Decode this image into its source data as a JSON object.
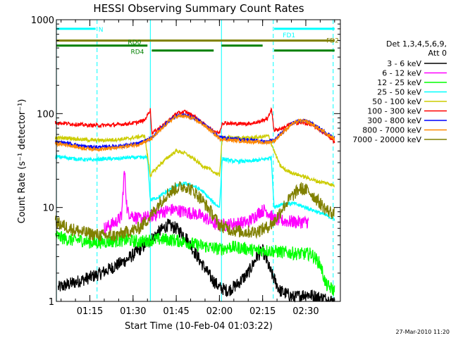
{
  "chart_data": {
    "type": "line",
    "title": "HESSI Observing Summary Count Rates",
    "ylabel": "Count Rate (s⁻¹ detector⁻¹)",
    "xlabel": "Start Time (10-Feb-04 01:03:22)",
    "timestamp": "27-Mar-2010 11:20",
    "y_scale": "log",
    "ylim": [
      1,
      1000
    ],
    "xlim": [
      "01:03:22",
      "02:42:00"
    ],
    "y_ticks": [
      {
        "value": 1,
        "label": "1"
      },
      {
        "value": 10,
        "label": "10"
      },
      {
        "value": 100,
        "label": "100"
      },
      {
        "value": 1000,
        "label": "1000"
      }
    ],
    "x_ticks": [
      {
        "minutes": 75,
        "label": "01:15"
      },
      {
        "minutes": 90,
        "label": "01:30"
      },
      {
        "minutes": 105,
        "label": "01:45"
      },
      {
        "minutes": 120,
        "label": "02:00"
      },
      {
        "minutes": 135,
        "label": "02:15"
      },
      {
        "minutes": 150,
        "label": "02:30"
      }
    ],
    "legend_header": [
      "Det 1,3,4,5,6,9,",
      "Att 0"
    ],
    "legend_placement": "right, outside plot",
    "series": [
      {
        "name": "3 - 6 keV",
        "color": "#000000",
        "points": [
          [
            64,
            1.4
          ],
          [
            70,
            1.6
          ],
          [
            75,
            1.8
          ],
          [
            79,
            2.0
          ],
          [
            84,
            2.4
          ],
          [
            88,
            2.8
          ],
          [
            92,
            3.5
          ],
          [
            96,
            4.5
          ],
          [
            99,
            5.5
          ],
          [
            102,
            6.5
          ],
          [
            105,
            6.0
          ],
          [
            108,
            5.0
          ],
          [
            111,
            3.5
          ],
          [
            114,
            2.5
          ],
          [
            117,
            1.8
          ],
          [
            120,
            1.4
          ],
          [
            123,
            1.3
          ],
          [
            126,
            1.5
          ],
          [
            130,
            2.0
          ],
          [
            133,
            3.0
          ],
          [
            135,
            3.5
          ],
          [
            138,
            2.0
          ],
          [
            141,
            1.3
          ],
          [
            146,
            1.1
          ],
          [
            150,
            1.2
          ],
          [
            155,
            1.1
          ],
          [
            160,
            1.0
          ]
        ]
      },
      {
        "name": "6 - 12 keV",
        "color": "#ff00ff",
        "points": [
          [
            80,
            6.0
          ],
          [
            84,
            7.0
          ],
          [
            86,
            8.0
          ],
          [
            87,
            25
          ],
          [
            88,
            9.0
          ],
          [
            92,
            7.5
          ],
          [
            96,
            8.0
          ],
          [
            100,
            9.0
          ],
          [
            104,
            9.5
          ],
          [
            108,
            9.0
          ],
          [
            112,
            8.5
          ],
          [
            116,
            7.5
          ],
          [
            119,
            6.5
          ],
          [
            122,
            6.5
          ],
          [
            126,
            6.8
          ],
          [
            130,
            7.0
          ],
          [
            134,
            9.0
          ],
          [
            136,
            9.5
          ],
          [
            139,
            7.5
          ],
          [
            142,
            7.2
          ],
          [
            147,
            7.0
          ],
          [
            151,
            7.0
          ]
        ]
      },
      {
        "name": "12 - 25 keV",
        "color": "#00ff00",
        "points": [
          [
            63,
            5.0
          ],
          [
            68,
            4.5
          ],
          [
            72,
            4.5
          ],
          [
            76,
            4.2
          ],
          [
            80,
            4.3
          ],
          [
            84,
            4.4
          ],
          [
            88,
            4.5
          ],
          [
            92,
            4.3
          ],
          [
            96,
            4.5
          ],
          [
            100,
            4.6
          ],
          [
            104,
            4.5
          ],
          [
            108,
            4.3
          ],
          [
            112,
            4.0
          ],
          [
            116,
            3.8
          ],
          [
            120,
            3.6
          ],
          [
            124,
            3.8
          ],
          [
            128,
            3.7
          ],
          [
            132,
            3.5
          ],
          [
            136,
            3.5
          ],
          [
            140,
            3.4
          ],
          [
            144,
            3.3
          ],
          [
            148,
            3.2
          ],
          [
            152,
            3.2
          ],
          [
            155,
            2.5
          ],
          [
            157,
            1.5
          ],
          [
            160,
            1.3
          ]
        ]
      },
      {
        "name": "25 - 50 keV",
        "color": "#00ffff",
        "points": [
          [
            63,
            35
          ],
          [
            70,
            33
          ],
          [
            75,
            32
          ],
          [
            80,
            33
          ],
          [
            84,
            33
          ],
          [
            88,
            34
          ],
          [
            92,
            34
          ],
          [
            95,
            34
          ],
          [
            96,
            12
          ],
          [
            99,
            13
          ],
          [
            102,
            15
          ],
          [
            105,
            17
          ],
          [
            108,
            18
          ],
          [
            111,
            17
          ],
          [
            114,
            15
          ],
          [
            117,
            12
          ],
          [
            120,
            10
          ],
          [
            121,
            33
          ],
          [
            125,
            31
          ],
          [
            130,
            31
          ],
          [
            134,
            32
          ],
          [
            138,
            34
          ],
          [
            139,
            10
          ],
          [
            142,
            11
          ],
          [
            146,
            11
          ],
          [
            150,
            10
          ],
          [
            154,
            9.0
          ],
          [
            158,
            8.0
          ],
          [
            160,
            7.5
          ]
        ]
      },
      {
        "name": "50 - 100 keV",
        "color": "#cccc00",
        "points": [
          [
            63,
            55
          ],
          [
            68,
            55
          ],
          [
            72,
            53
          ],
          [
            76,
            52
          ],
          [
            80,
            52
          ],
          [
            84,
            53
          ],
          [
            88,
            54
          ],
          [
            91,
            56
          ],
          [
            94,
            58
          ],
          [
            96,
            22
          ],
          [
            99,
            28
          ],
          [
            102,
            34
          ],
          [
            105,
            40
          ],
          [
            108,
            38
          ],
          [
            111,
            33
          ],
          [
            114,
            28
          ],
          [
            117,
            25
          ],
          [
            120,
            22
          ],
          [
            121,
            56
          ],
          [
            125,
            55
          ],
          [
            130,
            55
          ],
          [
            134,
            56
          ],
          [
            137,
            58
          ],
          [
            139,
            40
          ],
          [
            141,
            28
          ],
          [
            143,
            25
          ],
          [
            146,
            23
          ],
          [
            150,
            21
          ],
          [
            154,
            19
          ],
          [
            158,
            18
          ],
          [
            160,
            17
          ]
        ]
      },
      {
        "name": "100 - 300 keV",
        "color": "#ff0000",
        "points": [
          [
            63,
            80
          ],
          [
            68,
            78
          ],
          [
            72,
            76
          ],
          [
            75,
            75
          ],
          [
            80,
            75
          ],
          [
            84,
            76
          ],
          [
            88,
            78
          ],
          [
            91,
            80
          ],
          [
            94,
            85
          ],
          [
            96,
            110
          ],
          [
            96.5,
            62
          ],
          [
            99,
            70
          ],
          [
            102,
            82
          ],
          [
            105,
            100
          ],
          [
            108,
            105
          ],
          [
            111,
            95
          ],
          [
            114,
            80
          ],
          [
            117,
            68
          ],
          [
            120,
            62
          ],
          [
            121,
            80
          ],
          [
            125,
            78
          ],
          [
            130,
            78
          ],
          [
            134,
            82
          ],
          [
            137,
            90
          ],
          [
            138,
            115
          ],
          [
            139,
            66
          ],
          [
            142,
            70
          ],
          [
            145,
            78
          ],
          [
            148,
            80
          ],
          [
            151,
            78
          ],
          [
            154,
            70
          ],
          [
            157,
            60
          ],
          [
            160,
            50
          ]
        ]
      },
      {
        "name": "300 - 800 keV",
        "color": "#0000ff",
        "points": [
          [
            63,
            50
          ],
          [
            68,
            48
          ],
          [
            72,
            45
          ],
          [
            76,
            44
          ],
          [
            80,
            44
          ],
          [
            84,
            45
          ],
          [
            88,
            46
          ],
          [
            92,
            48
          ],
          [
            96,
            54
          ],
          [
            99,
            66
          ],
          [
            102,
            82
          ],
          [
            105,
            95
          ],
          [
            108,
            96
          ],
          [
            111,
            90
          ],
          [
            114,
            80
          ],
          [
            117,
            68
          ],
          [
            120,
            56
          ],
          [
            124,
            54
          ],
          [
            128,
            53
          ],
          [
            132,
            52
          ],
          [
            136,
            50
          ],
          [
            139,
            52
          ],
          [
            142,
            64
          ],
          [
            145,
            78
          ],
          [
            148,
            85
          ],
          [
            151,
            82
          ],
          [
            154,
            72
          ],
          [
            157,
            62
          ],
          [
            160,
            55
          ]
        ]
      },
      {
        "name": "800 - 7000 keV",
        "color": "#ff8800",
        "points": [
          [
            63,
            48
          ],
          [
            68,
            46
          ],
          [
            72,
            43
          ],
          [
            76,
            42
          ],
          [
            80,
            42
          ],
          [
            84,
            43
          ],
          [
            88,
            45
          ],
          [
            92,
            47
          ],
          [
            96,
            53
          ],
          [
            99,
            64
          ],
          [
            102,
            80
          ],
          [
            105,
            93
          ],
          [
            108,
            94
          ],
          [
            111,
            88
          ],
          [
            114,
            78
          ],
          [
            117,
            66
          ],
          [
            120,
            54
          ],
          [
            124,
            52
          ],
          [
            128,
            51
          ],
          [
            132,
            50
          ],
          [
            136,
            49
          ],
          [
            139,
            51
          ],
          [
            142,
            63
          ],
          [
            145,
            77
          ],
          [
            148,
            84
          ],
          [
            151,
            81
          ],
          [
            154,
            71
          ],
          [
            157,
            61
          ],
          [
            160,
            54
          ]
        ]
      },
      {
        "name": "7000 - 20000 keV",
        "color": "#808000",
        "points": [
          [
            63,
            7.0
          ],
          [
            68,
            6.0
          ],
          [
            72,
            5.5
          ],
          [
            76,
            5.2
          ],
          [
            80,
            5.0
          ],
          [
            84,
            5.0
          ],
          [
            88,
            5.5
          ],
          [
            92,
            6.0
          ],
          [
            96,
            8.0
          ],
          [
            99,
            11
          ],
          [
            102,
            14
          ],
          [
            105,
            16
          ],
          [
            108,
            17
          ],
          [
            111,
            15
          ],
          [
            114,
            12
          ],
          [
            117,
            9.0
          ],
          [
            120,
            6.5
          ],
          [
            124,
            5.8
          ],
          [
            128,
            5.5
          ],
          [
            132,
            5.5
          ],
          [
            136,
            6.0
          ],
          [
            139,
            7.0
          ],
          [
            142,
            10
          ],
          [
            145,
            13
          ],
          [
            148,
            16
          ],
          [
            151,
            15
          ],
          [
            154,
            12
          ],
          [
            157,
            9.5
          ],
          [
            160,
            8.5
          ]
        ]
      }
    ],
    "vertical_markers": [
      {
        "minutes": 63.4,
        "color": "#00ffff",
        "style": "solid"
      },
      {
        "minutes": 77.5,
        "color": "#00ffff",
        "style": "dashed"
      },
      {
        "minutes": 96.0,
        "color": "#00ffff",
        "style": "solid"
      },
      {
        "minutes": 120.7,
        "color": "#00ffff",
        "style": "solid"
      },
      {
        "minutes": 138.7,
        "color": "#00ffff",
        "style": "dashed"
      },
      {
        "minutes": 159.5,
        "color": "#00ffff",
        "style": "dashed"
      }
    ],
    "flag_bars": [
      {
        "label": "N",
        "color": "#00ffff",
        "level": 800,
        "segments": [
          [
            63.4,
            77.0
          ]
        ]
      },
      {
        "label": "FD1",
        "color": "#00ffff",
        "level": 800,
        "segments": [
          [
            139.0,
            160.0
          ]
        ]
      },
      {
        "label": "FD2",
        "color": "#808000",
        "level": 600,
        "segments": [
          [
            63.4,
            160.0
          ]
        ]
      },
      {
        "label": "RD0",
        "color": "#008000",
        "level": 530,
        "segments": [
          [
            63.4,
            95.0
          ],
          [
            120.7,
            135.0
          ]
        ]
      },
      {
        "label": "RD4",
        "color": "#008000",
        "level": 470,
        "segments": [
          [
            96.5,
            118.0
          ],
          [
            139.0,
            160.0
          ]
        ]
      }
    ]
  }
}
